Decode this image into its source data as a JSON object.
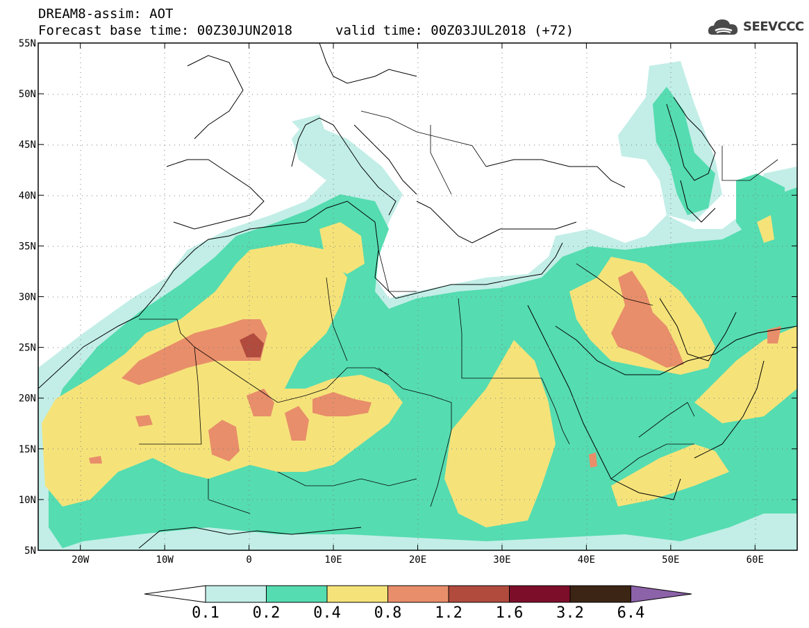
{
  "title": {
    "line1": "DREAM8-assim: AOT",
    "base_time": "Forecast base time: 00Z30JUN2018",
    "valid_time": "valid time: 00Z03JUL2018 (+72)"
  },
  "logo": {
    "text": "SEEVCCC",
    "icon": "cloud-icon"
  },
  "map": {
    "lon_range": [
      -25,
      65
    ],
    "lat_range": [
      5,
      55
    ],
    "lat_ticks": [
      {
        "value": 55,
        "label": "55N"
      },
      {
        "value": 50,
        "label": "50N"
      },
      {
        "value": 45,
        "label": "45N"
      },
      {
        "value": 40,
        "label": "40N"
      },
      {
        "value": 35,
        "label": "35N"
      },
      {
        "value": 30,
        "label": "30N"
      },
      {
        "value": 25,
        "label": "25N"
      },
      {
        "value": 20,
        "label": "20N"
      },
      {
        "value": 15,
        "label": "15N"
      },
      {
        "value": 10,
        "label": "10N"
      },
      {
        "value": 5,
        "label": "5N"
      }
    ],
    "lon_ticks": [
      {
        "value": -20,
        "label": "20W"
      },
      {
        "value": -10,
        "label": "10W"
      },
      {
        "value": 0,
        "label": "0"
      },
      {
        "value": 10,
        "label": "10E"
      },
      {
        "value": 20,
        "label": "20E"
      },
      {
        "value": 30,
        "label": "30E"
      },
      {
        "value": 40,
        "label": "40E"
      },
      {
        "value": 50,
        "label": "50E"
      },
      {
        "value": 60,
        "label": "60E"
      }
    ],
    "grid": "dotted"
  },
  "colorbar": {
    "labels": [
      "0.1",
      "0.2",
      "0.4",
      "0.8",
      "1.2",
      "1.6",
      "3.2",
      "6.4"
    ],
    "colors": [
      "#ffffff",
      "#c2eee7",
      "#55dcb0",
      "#f5e37a",
      "#e88e6a",
      "#b04b3e",
      "#7d0e2a",
      "#3c2515",
      "#8c62a8"
    ]
  }
}
